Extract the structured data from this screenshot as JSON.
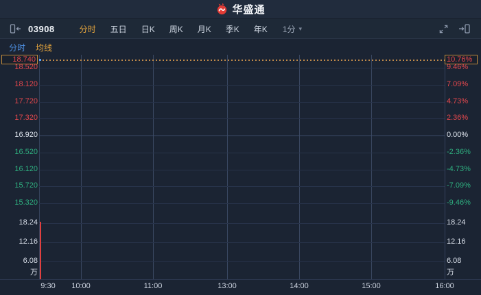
{
  "header": {
    "app_name": "华盛通"
  },
  "toolbar": {
    "stock_code": "03908",
    "tabs": [
      {
        "label": "分时",
        "name": "tab-intraday",
        "active": true
      },
      {
        "label": "五日",
        "name": "tab-five-day",
        "active": false
      },
      {
        "label": "日K",
        "name": "tab-day-k",
        "active": false
      },
      {
        "label": "周K",
        "name": "tab-week-k",
        "active": false
      },
      {
        "label": "月K",
        "name": "tab-month-k",
        "active": false
      },
      {
        "label": "季K",
        "name": "tab-quarter-k",
        "active": false
      },
      {
        "label": "年K",
        "name": "tab-year-k",
        "active": false
      }
    ],
    "interval": {
      "label": "1分",
      "caret": "▾"
    }
  },
  "subtabs": [
    {
      "label": "分时",
      "name": "subtab-price-line",
      "tone": "blue"
    },
    {
      "label": "均线",
      "name": "subtab-moving-average",
      "tone": "gold"
    }
  ],
  "chart_data": {
    "type": "line",
    "title": "03908 intraday (minute) chart",
    "current_price": "18.740",
    "current_change_pct": "10.76%",
    "prev_close": "16.920",
    "price_axis": [
      {
        "price": "18.740",
        "pct": "10.76%",
        "tone": "up",
        "boxed": true
      },
      {
        "price": "18.520",
        "pct": "9.46%",
        "tone": "up"
      },
      {
        "price": "18.120",
        "pct": "7.09%",
        "tone": "up"
      },
      {
        "price": "17.720",
        "pct": "4.73%",
        "tone": "up"
      },
      {
        "price": "17.320",
        "pct": "2.36%",
        "tone": "up"
      },
      {
        "price": "16.920",
        "pct": "0.00%",
        "tone": "flat"
      },
      {
        "price": "16.520",
        "pct": "-2.36%",
        "tone": "down"
      },
      {
        "price": "16.120",
        "pct": "-4.73%",
        "tone": "down"
      },
      {
        "price": "15.720",
        "pct": "-7.09%",
        "tone": "down"
      },
      {
        "price": "15.320",
        "pct": "-9.46%",
        "tone": "down"
      }
    ],
    "volume_axis": {
      "ticks": [
        "18.24",
        "12.16",
        "6.08"
      ],
      "unit": "万"
    },
    "x_axis": [
      "9:30",
      "10:00",
      "11:00",
      "13:00",
      "14:00",
      "15:00",
      "16:00"
    ],
    "series": [
      {
        "name": "price",
        "x": [
          "9:30"
        ],
        "values": [
          18.74
        ]
      }
    ],
    "volume_series": {
      "x": [
        "9:30"
      ],
      "values": [
        18.6
      ],
      "unit": "万"
    },
    "ylim": [
      15.12,
      18.74
    ],
    "grid": true,
    "legend_position": "none",
    "colors": {
      "up": "#e5484d",
      "down": "#2fb080",
      "flat": "#dde3ec",
      "accent_box": "#c08a3c",
      "dotted_line": "#c08a4a",
      "volume_bar": "#e0403f",
      "price_line": "#57a0f7"
    }
  }
}
